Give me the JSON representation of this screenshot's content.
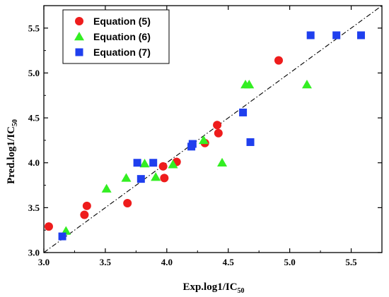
{
  "chart_data": {
    "type": "scatter",
    "title": "",
    "xlabel": "Exp.log1/IC",
    "xlabel_sub": "50",
    "ylabel": "Pred.log1/IC",
    "ylabel_sub": "50",
    "xlim": [
      3.0,
      5.75
    ],
    "ylim": [
      3.0,
      5.75
    ],
    "xticks": [
      3.0,
      3.5,
      4.0,
      4.5,
      5.0,
      5.5
    ],
    "yticks": [
      3.0,
      3.5,
      4.0,
      4.5,
      5.0,
      5.5
    ],
    "xtick_labels": [
      "3.0",
      "3.5",
      "4.0",
      "4.5",
      "5.0",
      "5.5"
    ],
    "ytick_labels": [
      "3.0",
      "3.5",
      "4.0",
      "4.5",
      "5.0",
      "5.5"
    ],
    "grid": false,
    "legend_position": "top-left",
    "reference_line": "y=x",
    "series": [
      {
        "name": "Equation (5)",
        "marker": "circle",
        "color": "#ee1c1c",
        "points": [
          [
            3.04,
            3.29
          ],
          [
            3.33,
            3.42
          ],
          [
            3.35,
            3.52
          ],
          [
            3.68,
            3.55
          ],
          [
            3.97,
            3.96
          ],
          [
            3.98,
            3.83
          ],
          [
            4.08,
            4.01
          ],
          [
            4.31,
            4.22
          ],
          [
            4.41,
            4.42
          ],
          [
            4.42,
            4.33
          ],
          [
            4.91,
            5.14
          ]
        ]
      },
      {
        "name": "Equation (6)",
        "marker": "triangle",
        "color": "#33ee22",
        "points": [
          [
            3.18,
            3.24
          ],
          [
            3.51,
            3.71
          ],
          [
            3.67,
            3.83
          ],
          [
            3.82,
            3.99
          ],
          [
            3.91,
            3.84
          ],
          [
            4.05,
            3.98
          ],
          [
            4.3,
            4.25
          ],
          [
            4.45,
            4.0
          ],
          [
            4.64,
            4.87
          ],
          [
            4.67,
            4.87
          ],
          [
            5.14,
            4.87
          ]
        ]
      },
      {
        "name": "Equation (7)",
        "marker": "square",
        "color": "#1f3fee",
        "points": [
          [
            3.15,
            3.18
          ],
          [
            3.76,
            4.0
          ],
          [
            3.79,
            3.82
          ],
          [
            3.89,
            4.0
          ],
          [
            4.2,
            4.18
          ],
          [
            4.21,
            4.21
          ],
          [
            4.62,
            4.56
          ],
          [
            4.68,
            4.23
          ],
          [
            5.17,
            5.42
          ],
          [
            5.38,
            5.42
          ],
          [
            5.58,
            5.42
          ]
        ]
      }
    ]
  }
}
